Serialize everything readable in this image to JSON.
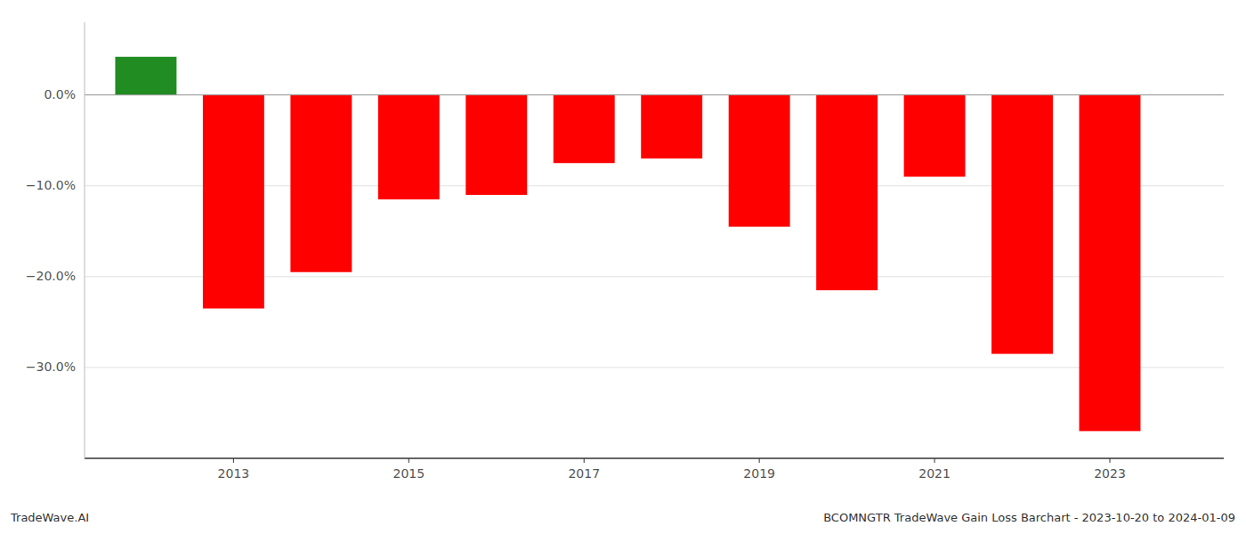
{
  "chart_data": {
    "type": "bar",
    "title": "BCOMNGTR TradeWave Gain Loss Barchart - 2023-10-20 to 2024-01-09",
    "annotations": [
      "TradeWave.AI"
    ],
    "x": [
      2012,
      2013,
      2014,
      2015,
      2016,
      2017,
      2018,
      2019,
      2020,
      2021,
      2022,
      2023
    ],
    "values": [
      4.2,
      -23.5,
      -19.5,
      -11.5,
      -11.0,
      -7.5,
      -7.0,
      -14.5,
      -21.5,
      -9.0,
      -28.5,
      -37.0
    ],
    "colors": [
      "#218c21",
      "#ff0000",
      "#ff0000",
      "#ff0000",
      "#ff0000",
      "#ff0000",
      "#ff0000",
      "#ff0000",
      "#ff0000",
      "#ff0000",
      "#ff0000",
      "#ff0000"
    ],
    "xlim": [
      2011.3,
      2024.3
    ],
    "xticks": [
      2013,
      2015,
      2017,
      2019,
      2021,
      2023
    ],
    "ylim": [
      -40,
      8
    ],
    "yticks": [
      {
        "value": 0.0,
        "label": "0.0%"
      },
      {
        "value": -10.0,
        "label": "−10.0%"
      },
      {
        "value": -20.0,
        "label": "−20.0%"
      },
      {
        "value": -30.0,
        "label": "−30.0%"
      }
    ],
    "grid": true
  }
}
